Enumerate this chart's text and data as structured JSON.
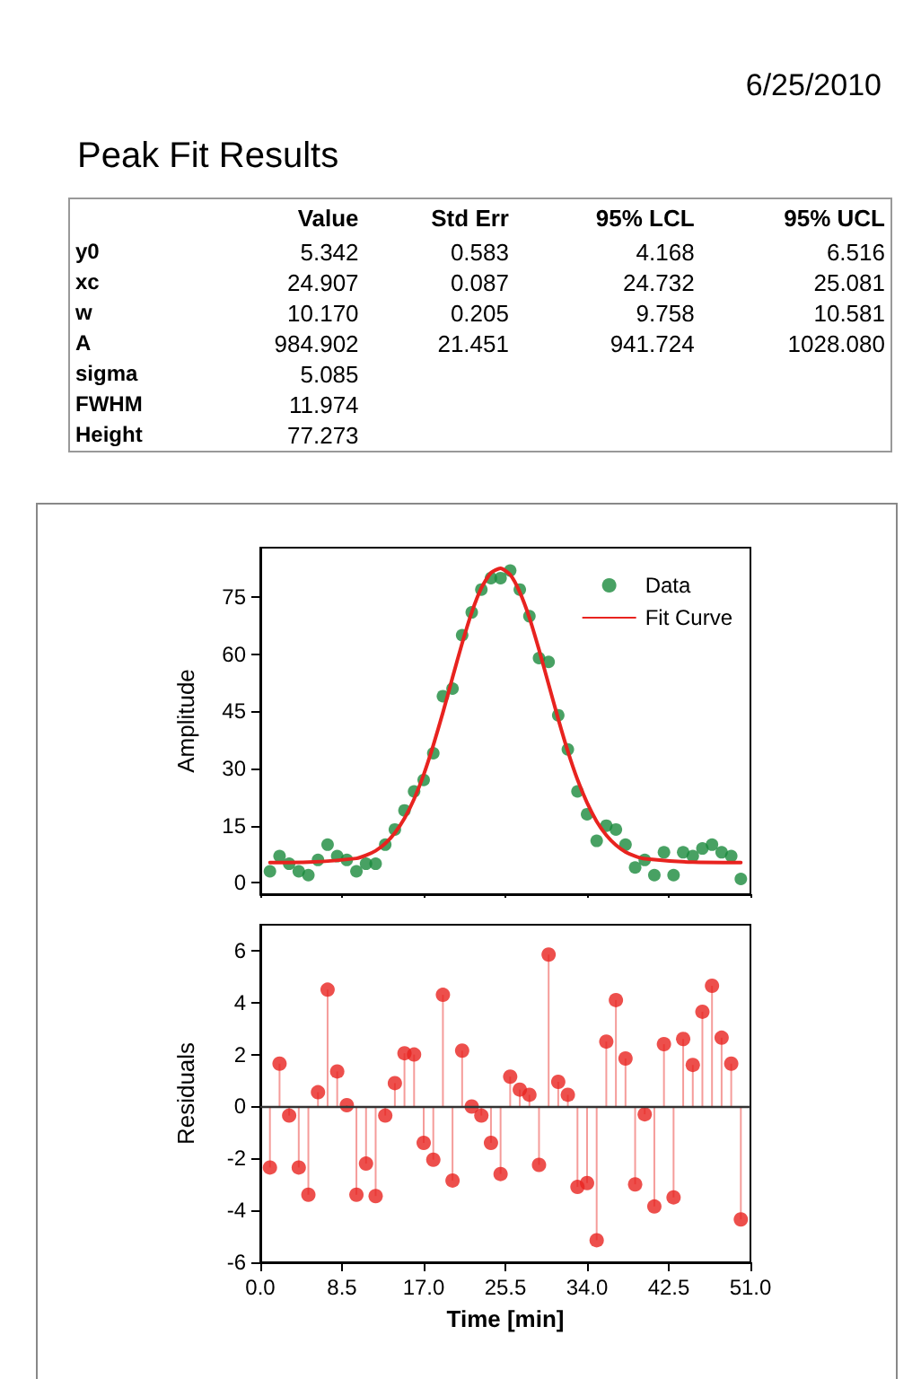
{
  "chart_data": [
    {
      "type": "other",
      "title": "Peak Fit Results",
      "annotations": [
        "6/25/2010"
      ],
      "categories": [
        "Value",
        "Std Err",
        "95% LCL",
        "95% UCL"
      ],
      "y_categories": [
        "y0",
        "xc",
        "w",
        "A",
        "sigma",
        "FWHM",
        "Height"
      ],
      "cell_labels": [
        [
          "5.342",
          "0.583",
          "4.168",
          "6.516"
        ],
        [
          "24.907",
          "0.087",
          "24.732",
          "25.081"
        ],
        [
          "10.170",
          "0.205",
          "9.758",
          "10.581"
        ],
        [
          "984.902",
          "21.451",
          "941.724",
          "1028.080"
        ],
        [
          "5.085",
          null,
          null,
          null
        ],
        [
          "11.974",
          null,
          null,
          null
        ],
        [
          "77.273",
          null,
          null,
          null
        ]
      ]
    },
    {
      "type": "scatter",
      "ylabel": "Amplitude",
      "x": [
        1,
        2,
        3,
        4,
        5,
        6,
        7,
        8,
        9,
        10,
        11,
        12,
        13,
        14,
        15,
        16,
        17,
        18,
        19,
        20,
        21,
        22,
        23,
        24,
        25,
        26,
        27,
        28,
        29,
        30,
        31,
        32,
        33,
        34,
        35,
        36,
        37,
        38,
        39,
        40,
        41,
        42,
        43,
        44,
        45,
        46,
        47,
        48,
        49,
        50
      ],
      "series": [
        {
          "name": "Data",
          "color": "#1a8a3c",
          "marker": "circle",
          "values": [
            3,
            7,
            5,
            3,
            2,
            6,
            10,
            7,
            6,
            3,
            5,
            5,
            10,
            14,
            19,
            24,
            27,
            34,
            49,
            51,
            65,
            71,
            77,
            80,
            80,
            82,
            77,
            70,
            59,
            58,
            44,
            35,
            24,
            18,
            11,
            15,
            14,
            10,
            4,
            6,
            2,
            8,
            2,
            8,
            7,
            9,
            10,
            8,
            7,
            1
          ]
        },
        {
          "name": "Fit Curve",
          "type": "line",
          "color": "#e8231f",
          "marker": "none",
          "line_style": "solid",
          "x": [
            1,
            5,
            10,
            11,
            12,
            13,
            14,
            15,
            16,
            17,
            18,
            19,
            20,
            21,
            22,
            23,
            24,
            25,
            26,
            27,
            28,
            29,
            30,
            31,
            32,
            33,
            34,
            35,
            36,
            37,
            38,
            39,
            40,
            45,
            50
          ],
          "values": [
            5.3,
            5.4,
            6.4,
            7.2,
            8.4,
            10.3,
            13.1,
            16.9,
            22.0,
            28.4,
            36.1,
            44.7,
            53.9,
            62.9,
            71.0,
            77.4,
            81.4,
            82.6,
            80.9,
            76.3,
            69.6,
            61.2,
            52.1,
            43.0,
            34.5,
            27.1,
            21.0,
            16.1,
            12.5,
            9.9,
            8.1,
            7.0,
            6.3,
            5.4,
            5.3
          ]
        }
      ],
      "xlim": [
        0,
        51
      ],
      "xticks": [
        0,
        8.5,
        17,
        25.5,
        34,
        42.5,
        51
      ],
      "ylim": [
        -3,
        88
      ],
      "yticks": [
        0,
        15,
        30,
        45,
        60,
        75
      ],
      "tick_labels": "y",
      "grid": false,
      "legend": "top right"
    },
    {
      "type": "lollipop",
      "xlabel": "Time [min]",
      "ylabel": "Residuals",
      "x": [
        1,
        2,
        3,
        4,
        5,
        6,
        7,
        8,
        9,
        10,
        11,
        12,
        13,
        14,
        15,
        16,
        17,
        18,
        19,
        20,
        21,
        22,
        23,
        24,
        25,
        26,
        27,
        28,
        29,
        30,
        31,
        32,
        33,
        34,
        35,
        36,
        37,
        38,
        39,
        40,
        41,
        42,
        43,
        44,
        45,
        46,
        47,
        48,
        49,
        50
      ],
      "color": "#e8231f",
      "marker": "circle",
      "values": [
        -2.35,
        1.65,
        -0.35,
        -2.35,
        -3.4,
        0.55,
        4.5,
        1.35,
        0.05,
        -3.4,
        -2.2,
        -3.45,
        -0.35,
        0.9,
        2.05,
        2.0,
        -1.4,
        -2.05,
        4.3,
        -2.85,
        2.15,
        0.0,
        -0.35,
        -1.4,
        -2.6,
        1.15,
        0.65,
        0.45,
        -2.25,
        5.85,
        0.95,
        0.45,
        -3.1,
        -2.95,
        -5.15,
        2.5,
        4.1,
        1.85,
        -3.0,
        -0.3,
        -3.85,
        2.4,
        -3.5,
        2.6,
        1.6,
        3.65,
        4.65,
        2.65,
        1.65,
        -4.35
      ],
      "xlim": [
        0,
        51
      ],
      "xticks": [
        {
          "value": 0,
          "label": "0.0"
        },
        {
          "value": 8.5,
          "label": "8.5"
        },
        {
          "value": 17,
          "label": "17.0"
        },
        {
          "value": 25.5,
          "label": "25.5"
        },
        {
          "value": 34,
          "label": "34.0"
        },
        {
          "value": 42.5,
          "label": "42.5"
        },
        {
          "value": 51,
          "label": "51.0"
        }
      ],
      "ylim": [
        -6,
        7
      ],
      "yticks": [
        -6,
        -4,
        -2,
        0,
        2,
        4,
        6
      ],
      "grid": false,
      "ref_lines": [
        {
          "axis": "y",
          "value": 0,
          "color": "#333333"
        }
      ]
    }
  ]
}
